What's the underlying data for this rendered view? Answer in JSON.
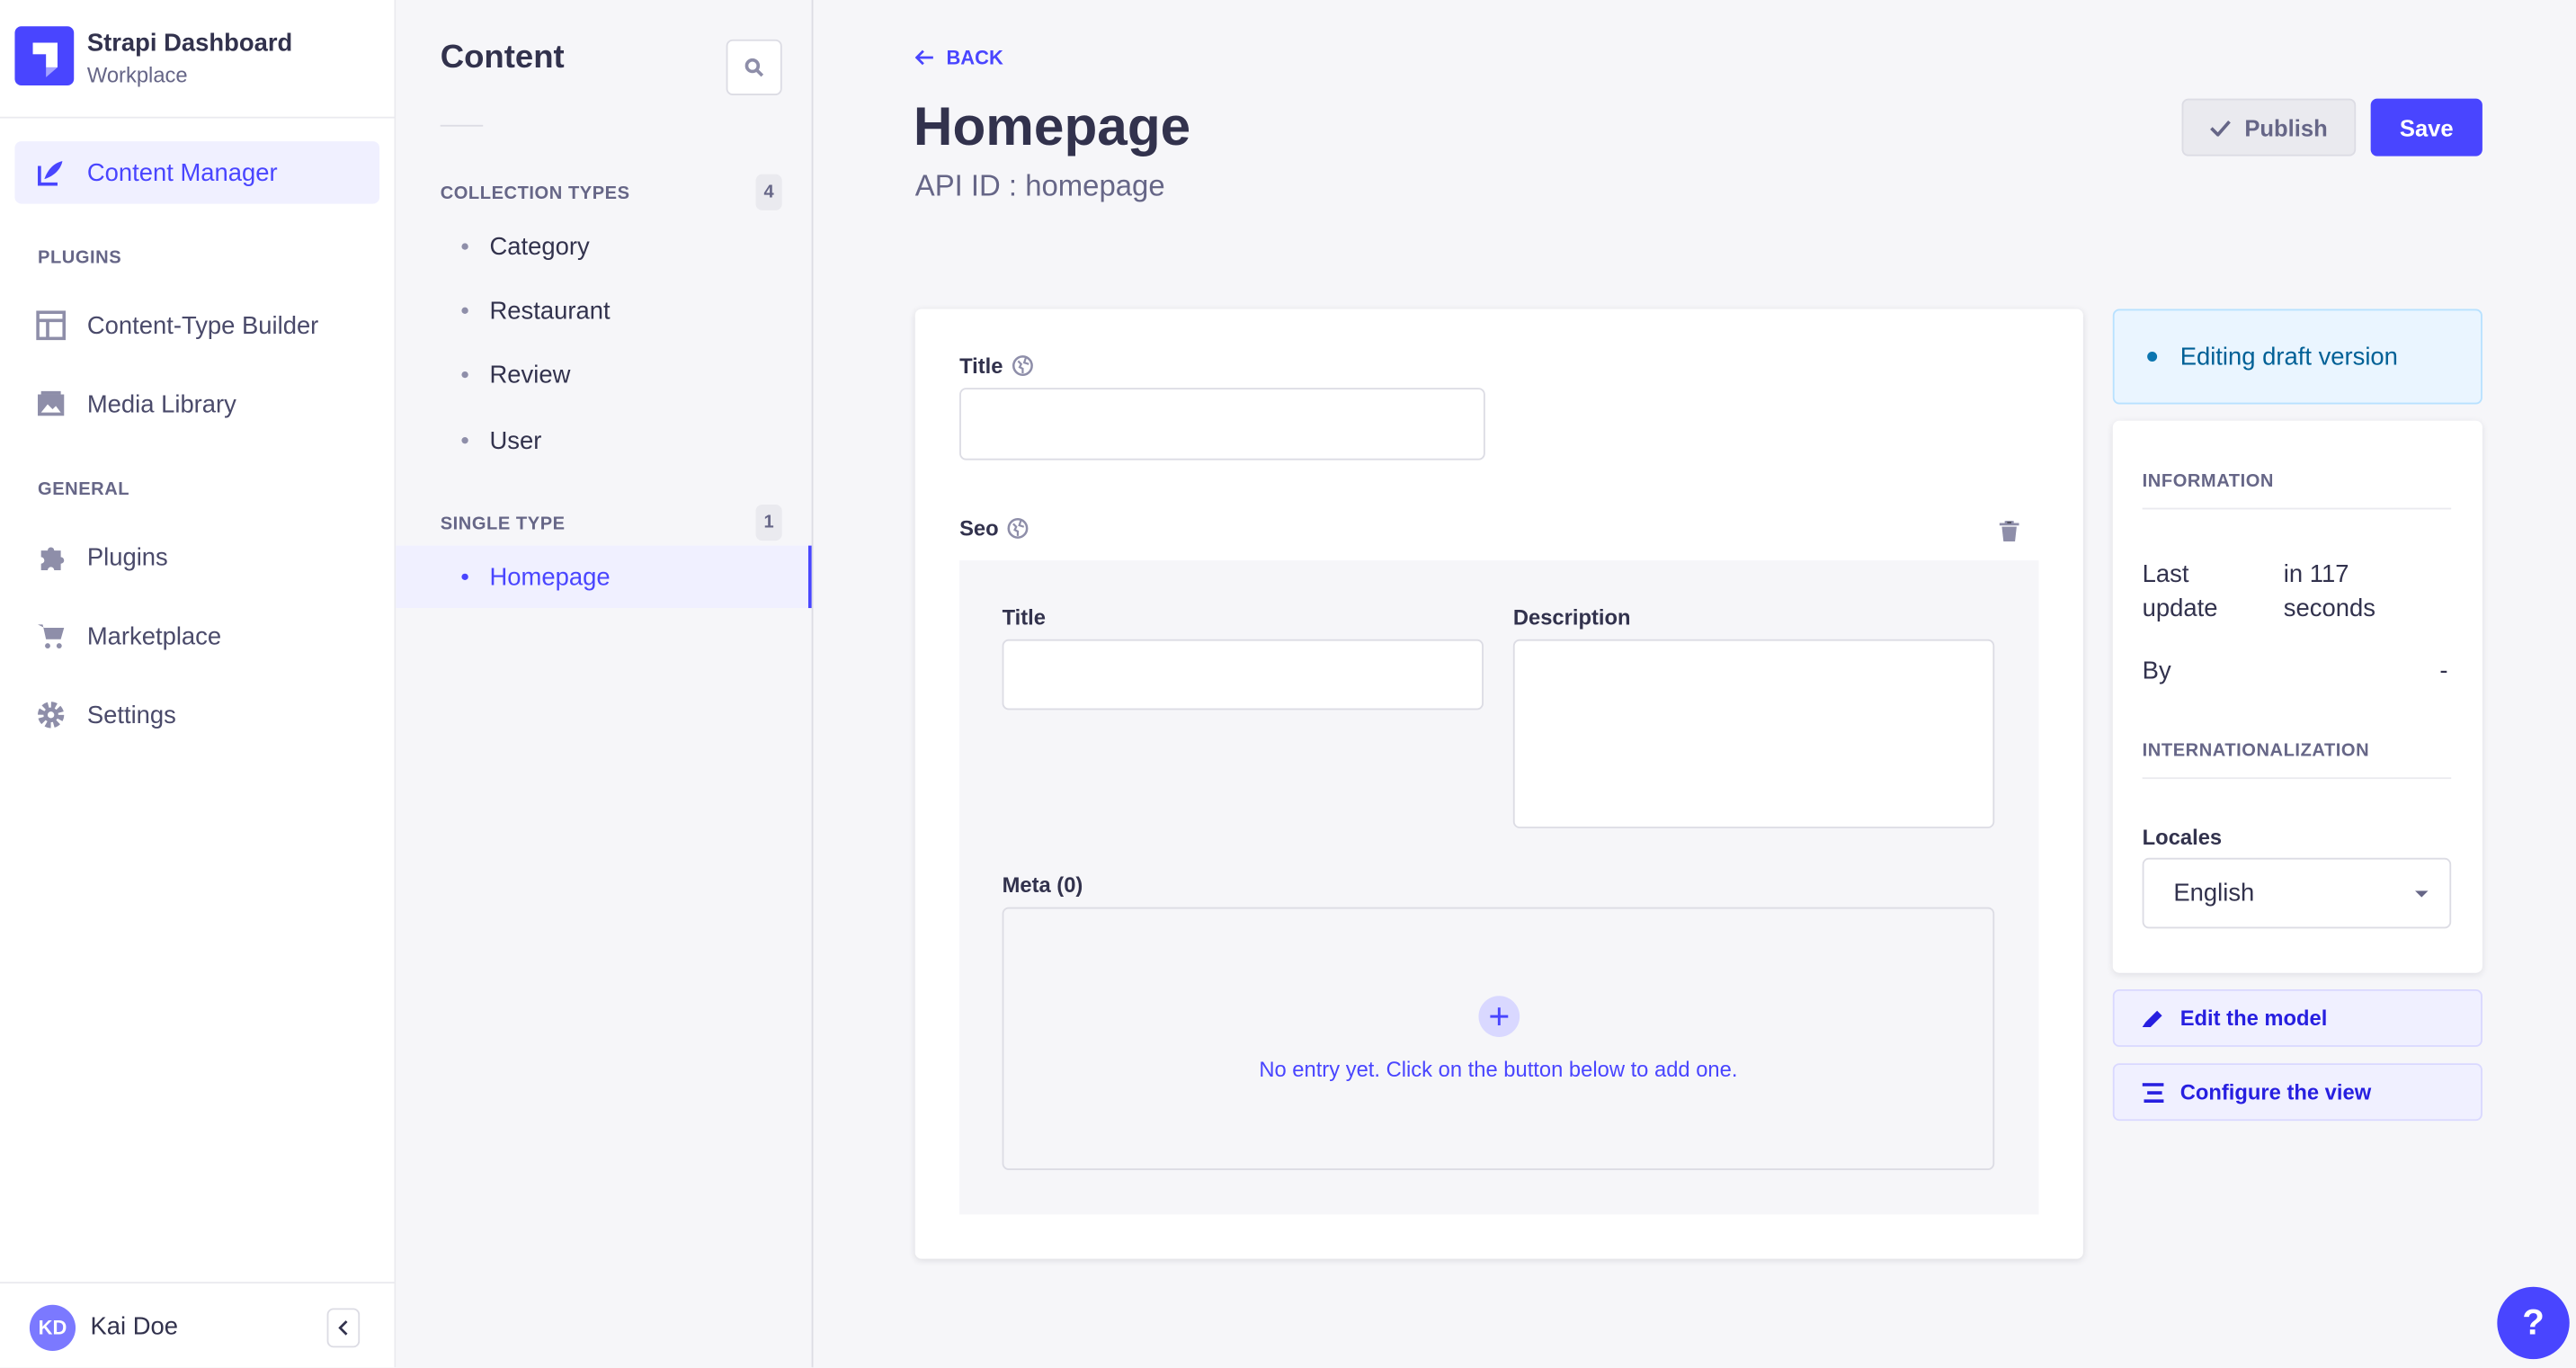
{
  "brand": {
    "title": "Strapi Dashboard",
    "subtitle": "Workplace"
  },
  "sidebar": {
    "active": {
      "label": "Content Manager",
      "icon": "feather-icon"
    },
    "plugins_label": "PLUGINS",
    "plugins": [
      {
        "label": "Content-Type Builder",
        "icon": "layout-icon"
      },
      {
        "label": "Media Library",
        "icon": "image-icon"
      }
    ],
    "general_label": "GENERAL",
    "general": [
      {
        "label": "Plugins",
        "icon": "puzzle-icon"
      },
      {
        "label": "Marketplace",
        "icon": "cart-icon"
      },
      {
        "label": "Settings",
        "icon": "gear-icon"
      }
    ],
    "user": {
      "initials": "KD",
      "name": "Kai Doe"
    }
  },
  "panel": {
    "title": "Content",
    "collection_label": "COLLECTION TYPES",
    "collection_count": "4",
    "collection": [
      "Category",
      "Restaurant",
      "Review",
      "User"
    ],
    "single_label": "SINGLE TYPE",
    "single_count": "1",
    "single": [
      "Homepage"
    ]
  },
  "header": {
    "back": "BACK",
    "title": "Homepage",
    "api_id": "API ID : homepage",
    "publish": "Publish",
    "save": "Save"
  },
  "form": {
    "title_label": "Title",
    "title_value": "",
    "seo_label": "Seo",
    "seo": {
      "title_label": "Title",
      "title_value": "",
      "description_label": "Description",
      "description_value": "",
      "meta_label": "Meta (0)",
      "empty_text": "No entry yet. Click on the button below to add one."
    }
  },
  "info": {
    "status": "Editing draft version",
    "information_label": "INFORMATION",
    "last_update_label": "Last update",
    "last_update_value": "in 117 seconds",
    "by_label": "By",
    "by_value": "-",
    "i18n_label": "INTERNATIONALIZATION",
    "locales_label": "Locales",
    "locale_value": "English",
    "edit_model": "Edit the model",
    "configure_view": "Configure the view"
  },
  "help": "?",
  "colors": {
    "primary": "#4945ff",
    "draft": "#006096"
  }
}
